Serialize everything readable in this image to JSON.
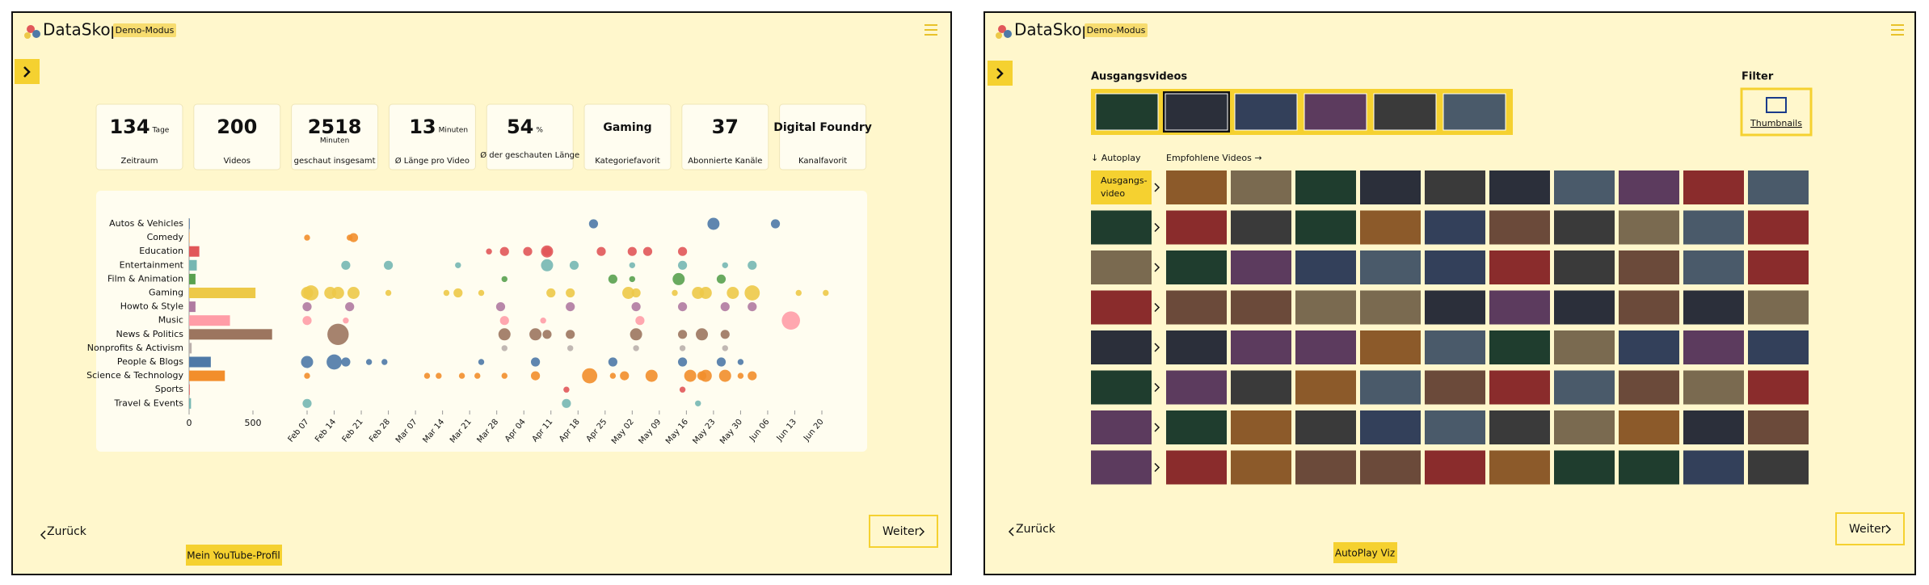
{
  "left": {
    "logo": "DataSkop",
    "badge": "Demo-Modus",
    "stats": [
      {
        "value": 134,
        "unit": "Tage",
        "label": "Zeitraum"
      },
      {
        "value": 200,
        "label": "Videos"
      },
      {
        "value": 2518,
        "unit": "Minuten",
        "label": "geschaut insgesamt"
      },
      {
        "value": 13,
        "unit": "Minuten",
        "label": "Ø Länge pro Video"
      },
      {
        "value": 54,
        "unit": "%",
        "label": "Ø der geschauten Länge"
      },
      {
        "value": "Gaming",
        "label": "Kategoriefavorit"
      },
      {
        "value": 37,
        "label": "Abonnierte Kanäle"
      },
      {
        "value": "Digital Foundry",
        "label": "Kanalfavorit"
      }
    ],
    "back": "Zurück",
    "next": "Weiter",
    "tab": "Mein YouTube-Profil"
  },
  "chart_data": [
    {
      "type": "bar",
      "orientation": "horizontal",
      "categories": [
        "Autos & Vehicles",
        "Comedy",
        "Education",
        "Entertainment",
        "Film & Animation",
        "Gaming",
        "Howto & Style",
        "Music",
        "News & Politics",
        "Nonprofits & Activism",
        "People & Blogs",
        "Science & Technology",
        "Sports",
        "Travel & Events"
      ],
      "values": [
        5,
        3,
        80,
        60,
        50,
        520,
        50,
        320,
        650,
        20,
        170,
        280,
        5,
        15
      ],
      "colors": [
        "#4e79a7",
        "#f28e2b",
        "#e15759",
        "#76b7b2",
        "#59a14f",
        "#edc948",
        "#b07aa1",
        "#ff9da7",
        "#9c755f",
        "#bab0ac",
        "#4e79a7",
        "#f28e2b",
        "#e15759",
        "#76b7b2"
      ],
      "xlim": [
        0,
        650
      ],
      "xticks": [
        0,
        500
      ]
    },
    {
      "type": "bubble",
      "xlim": [
        -1,
        137
      ],
      "xticks": [
        {
          "value": 0,
          "label": "Feb 07"
        },
        {
          "value": 7,
          "label": "Feb 14"
        },
        {
          "value": 14,
          "label": "Feb 21"
        },
        {
          "value": 21,
          "label": "Feb 28"
        },
        {
          "value": 28,
          "label": "Mar 07"
        },
        {
          "value": 35,
          "label": "Mar 14"
        },
        {
          "value": 42,
          "label": "Mar 21"
        },
        {
          "value": 49,
          "label": "Mar 28"
        },
        {
          "value": 56,
          "label": "Apr 04"
        },
        {
          "value": 63,
          "label": "Apr 11"
        },
        {
          "value": 70,
          "label": "Apr 18"
        },
        {
          "value": 77,
          "label": "Apr 25"
        },
        {
          "value": 84,
          "label": "May 02"
        },
        {
          "value": 91,
          "label": "May 09"
        },
        {
          "value": 98,
          "label": "May 16"
        },
        {
          "value": 105,
          "label": "May 23"
        },
        {
          "value": 112,
          "label": "May 30"
        },
        {
          "value": 119,
          "label": "Jun 06"
        },
        {
          "value": 126,
          "label": "Jun 13"
        },
        {
          "value": 133,
          "label": "Jun 20"
        }
      ],
      "points": [
        [
          [
            74,
            2
          ],
          [
            105,
            3
          ],
          [
            121,
            2
          ]
        ],
        [
          [
            0,
            1
          ],
          [
            11,
            1
          ],
          [
            12,
            2
          ]
        ],
        [
          [
            47,
            1
          ],
          [
            51,
            2
          ],
          [
            57,
            2
          ],
          [
            62,
            2
          ],
          [
            76,
            2
          ],
          [
            84,
            2
          ],
          [
            88,
            2
          ],
          [
            97,
            2
          ],
          [
            62,
            3
          ]
        ],
        [
          [
            10,
            2
          ],
          [
            21,
            2
          ],
          [
            39,
            1
          ],
          [
            62,
            3
          ],
          [
            69,
            2
          ],
          [
            84,
            1
          ],
          [
            97,
            2
          ],
          [
            108,
            1
          ],
          [
            115,
            2
          ]
        ],
        [
          [
            51,
            1
          ],
          [
            79,
            2
          ],
          [
            84,
            1
          ],
          [
            96,
            3
          ],
          [
            107,
            2
          ]
        ],
        [
          [
            0,
            3
          ],
          [
            1,
            4
          ],
          [
            6,
            3
          ],
          [
            8,
            3
          ],
          [
            12,
            3
          ],
          [
            21,
            1
          ],
          [
            36,
            1
          ],
          [
            39,
            2
          ],
          [
            45,
            1
          ],
          [
            63,
            2
          ],
          [
            68,
            2
          ],
          [
            83,
            3
          ],
          [
            85,
            2
          ],
          [
            95,
            1
          ],
          [
            101,
            3
          ],
          [
            103,
            3
          ],
          [
            110,
            3
          ],
          [
            115,
            4
          ],
          [
            127,
            1
          ],
          [
            134,
            1
          ]
        ],
        [
          [
            0,
            2
          ],
          [
            11,
            2
          ],
          [
            50,
            2
          ],
          [
            68,
            2
          ],
          [
            85,
            2
          ],
          [
            97,
            2
          ],
          [
            108,
            2
          ],
          [
            115,
            2
          ]
        ],
        [
          [
            0,
            2
          ],
          [
            10,
            1
          ],
          [
            51,
            2
          ],
          [
            61,
            1
          ],
          [
            86,
            2
          ],
          [
            125,
            5
          ]
        ],
        [
          [
            8,
            6
          ],
          [
            51,
            3
          ],
          [
            59,
            3
          ],
          [
            62,
            2
          ],
          [
            68,
            2
          ],
          [
            85,
            3
          ],
          [
            97,
            2
          ],
          [
            102,
            3
          ],
          [
            108,
            2
          ]
        ],
        [
          [
            51,
            1
          ],
          [
            68,
            1
          ],
          [
            85,
            1
          ],
          [
            97,
            1
          ],
          [
            108,
            1
          ]
        ],
        [
          [
            0,
            3
          ],
          [
            7,
            4
          ],
          [
            10,
            2
          ],
          [
            16,
            1
          ],
          [
            20,
            1
          ],
          [
            45,
            1
          ],
          [
            59,
            2
          ],
          [
            79,
            2
          ],
          [
            97,
            2
          ],
          [
            107,
            2
          ],
          [
            112,
            1
          ]
        ],
        [
          [
            0,
            1
          ],
          [
            31,
            1
          ],
          [
            34,
            1
          ],
          [
            40,
            1
          ],
          [
            44,
            1
          ],
          [
            51,
            1
          ],
          [
            59,
            2
          ],
          [
            73,
            4
          ],
          [
            79,
            1
          ],
          [
            82,
            2
          ],
          [
            89,
            3
          ],
          [
            99,
            3
          ],
          [
            102,
            2
          ],
          [
            103,
            3
          ],
          [
            108,
            3
          ],
          [
            112,
            1
          ],
          [
            115,
            2
          ]
        ],
        [
          [
            67,
            1
          ],
          [
            97,
            1
          ]
        ],
        [
          [
            0,
            2
          ],
          [
            67,
            2
          ],
          [
            101,
            1
          ]
        ]
      ]
    }
  ],
  "right": {
    "logo": "DataSkop",
    "badge": "Demo-Modus",
    "start_title": "Ausgangsvideos",
    "filter": "Filter",
    "filter_button": "Thumbnails",
    "autoplay": "↓ Autoplay",
    "recommended": "Empfohlene Videos →",
    "start_label": [
      "Ausgangs-",
      "video"
    ],
    "back": "Zurück",
    "next": "Weiter",
    "tab": "AutoPlay Viz"
  }
}
